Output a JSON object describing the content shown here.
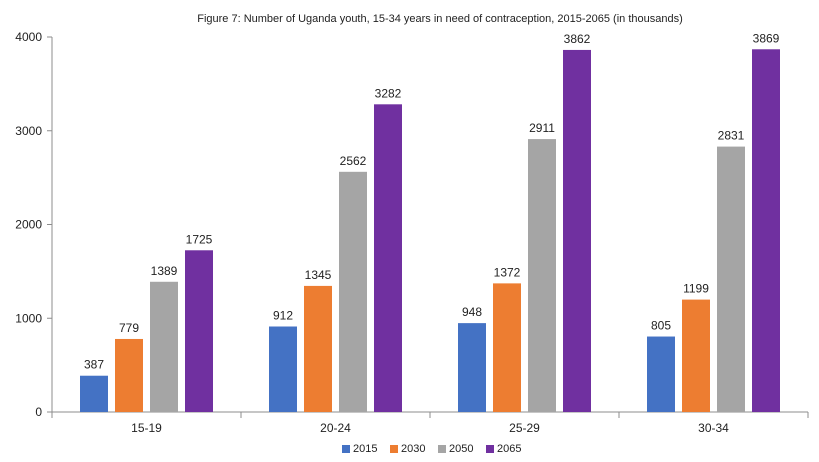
{
  "chart_data": {
    "type": "bar",
    "title": "Figure 7: Number of Uganda youth, 15-34 years in need of contraception, 2015-2065 (in thousands)",
    "xlabel": "",
    "ylabel": "",
    "ylim": [
      0,
      4000
    ],
    "yticks": [
      0,
      1000,
      2000,
      3000,
      4000
    ],
    "grid": false,
    "legend_position": "bottom",
    "categories": [
      "15-19",
      "20-24",
      "25-29",
      "30-34"
    ],
    "series": [
      {
        "name": "2015",
        "color": "#4472C4",
        "values": [
          387,
          912,
          948,
          805
        ]
      },
      {
        "name": "2030",
        "color": "#ED7D31",
        "values": [
          779,
          1345,
          1372,
          1199
        ]
      },
      {
        "name": "2050",
        "color": "#A5A5A5",
        "values": [
          1389,
          2562,
          2911,
          2831
        ]
      },
      {
        "name": "2065",
        "color": "#7030A0",
        "values": [
          1725,
          3282,
          3862,
          3869
        ]
      }
    ]
  }
}
